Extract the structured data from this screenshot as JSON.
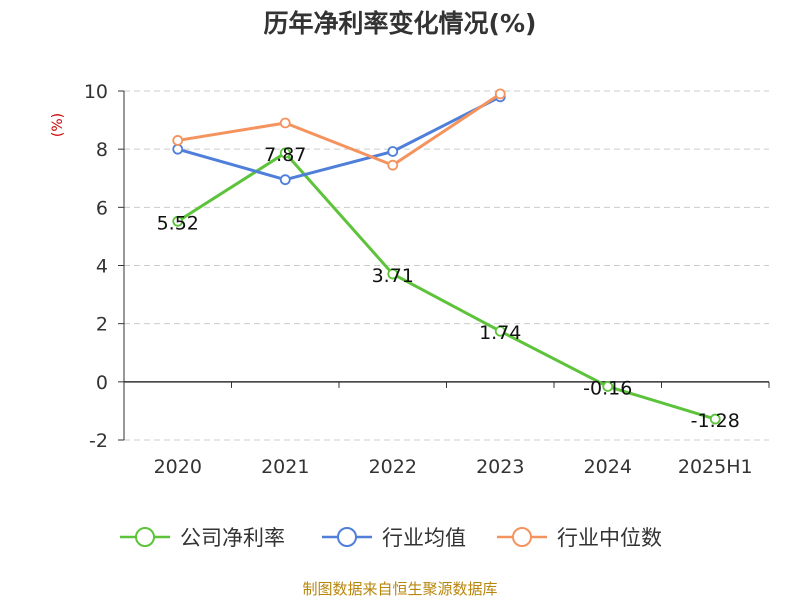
{
  "chart_data": {
    "type": "line",
    "title": "历年净利率变化情况(%)",
    "ylabel": "(%)",
    "xlabel": "",
    "categories": [
      "2020",
      "2021",
      "2022",
      "2023",
      "2024",
      "2025H1"
    ],
    "ylim": [
      -2,
      10
    ],
    "yticks": [
      10,
      8,
      6,
      4,
      2,
      0,
      -2
    ],
    "grid": true,
    "legend_position": "bottom",
    "series": [
      {
        "name": "公司净利率",
        "color": "#5cc33a",
        "values": [
          5.52,
          7.87,
          3.71,
          1.74,
          -0.16,
          -1.28
        ],
        "labels": [
          "5.52",
          "7.87",
          "3.71",
          "1.74",
          "-0.16",
          "-1.28"
        ]
      },
      {
        "name": "行业均值",
        "color": "#4f7fd9",
        "values": [
          8.0,
          6.95,
          7.92,
          9.8,
          null,
          null
        ]
      },
      {
        "name": "行业中位数",
        "color": "#f5935f",
        "values": [
          8.3,
          8.9,
          7.45,
          9.9,
          null,
          null
        ]
      }
    ]
  },
  "source_text": "制图数据来自恒生聚源数据库"
}
